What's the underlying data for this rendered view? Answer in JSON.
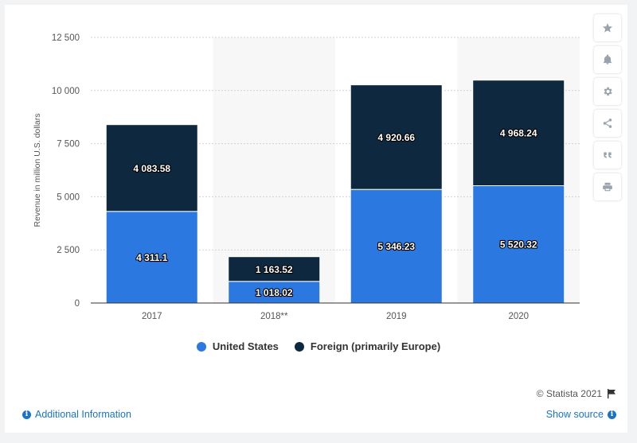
{
  "chart_data": {
    "type": "bar",
    "stacked": true,
    "categories": [
      "2017",
      "2018**",
      "2019",
      "2020"
    ],
    "series": [
      {
        "name": "United States",
        "color": "#2b78e0",
        "values": [
          4311.1,
          1018.02,
          5346.23,
          5520.32
        ],
        "labels": [
          "4 311.1",
          "1 018.02",
          "5 346.23",
          "5 520.32"
        ]
      },
      {
        "name": "Foreign (primarily Europe)",
        "color": "#0e2840",
        "values": [
          4083.58,
          1163.52,
          4920.66,
          4968.24
        ],
        "labels": [
          "4 083.58",
          "1 163.52",
          "4 920.66",
          "4 968.24"
        ]
      }
    ],
    "ylabel": "Revenue in million U.S. dollars",
    "ylim": [
      0,
      12500
    ],
    "yticks": [
      0,
      2500,
      5000,
      7500,
      10000,
      12500
    ],
    "ytick_labels": [
      "0",
      "2 500",
      "5 000",
      "7 500",
      "10 000",
      "12 500"
    ],
    "grid": true,
    "legend": "bottom"
  },
  "toolbar": {
    "icons": [
      "star-icon",
      "bell-icon",
      "gear-icon",
      "share-icon",
      "quote-icon",
      "print-icon"
    ]
  },
  "footer": {
    "credit": "© Statista 2021",
    "additional_info": "Additional Information",
    "show_source": "Show source"
  }
}
